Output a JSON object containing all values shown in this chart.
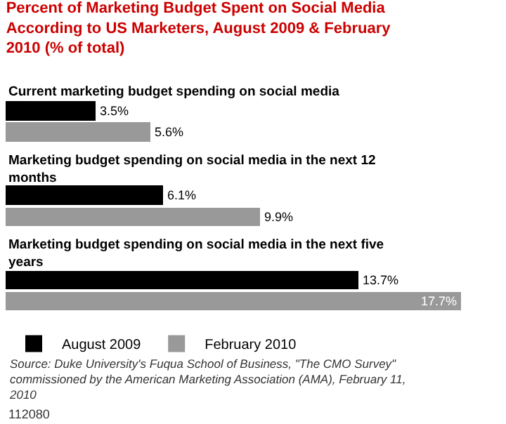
{
  "chart_data": {
    "type": "bar",
    "orientation": "horizontal",
    "title": "Percent of Marketing Budget Spent on Social Media According to US Marketers, August 2009 & February 2010 (% of total)",
    "categories": [
      "Current marketing budget spending on social media",
      "Marketing budget spending on social media in the next 12 months",
      "Marketing budget spending on social media in the next five years"
    ],
    "series": [
      {
        "name": "August 2009",
        "color": "#000000",
        "values": [
          3.5,
          6.1,
          13.7
        ],
        "value_labels": [
          "3.5%",
          "6.1%",
          "13.7%"
        ]
      },
      {
        "name": "February 2010",
        "color": "#999999",
        "values": [
          5.6,
          9.9,
          17.7
        ],
        "value_labels": [
          "5.6%",
          "9.9%",
          "17.7%"
        ]
      }
    ],
    "legend": "bottom",
    "annotations": [
      "Source: Duke University's Fuqua School of Business, \"The CMO Survey\" commissioned by the American Marketing Association (AMA), February 11, 2010",
      "112080"
    ]
  }
}
